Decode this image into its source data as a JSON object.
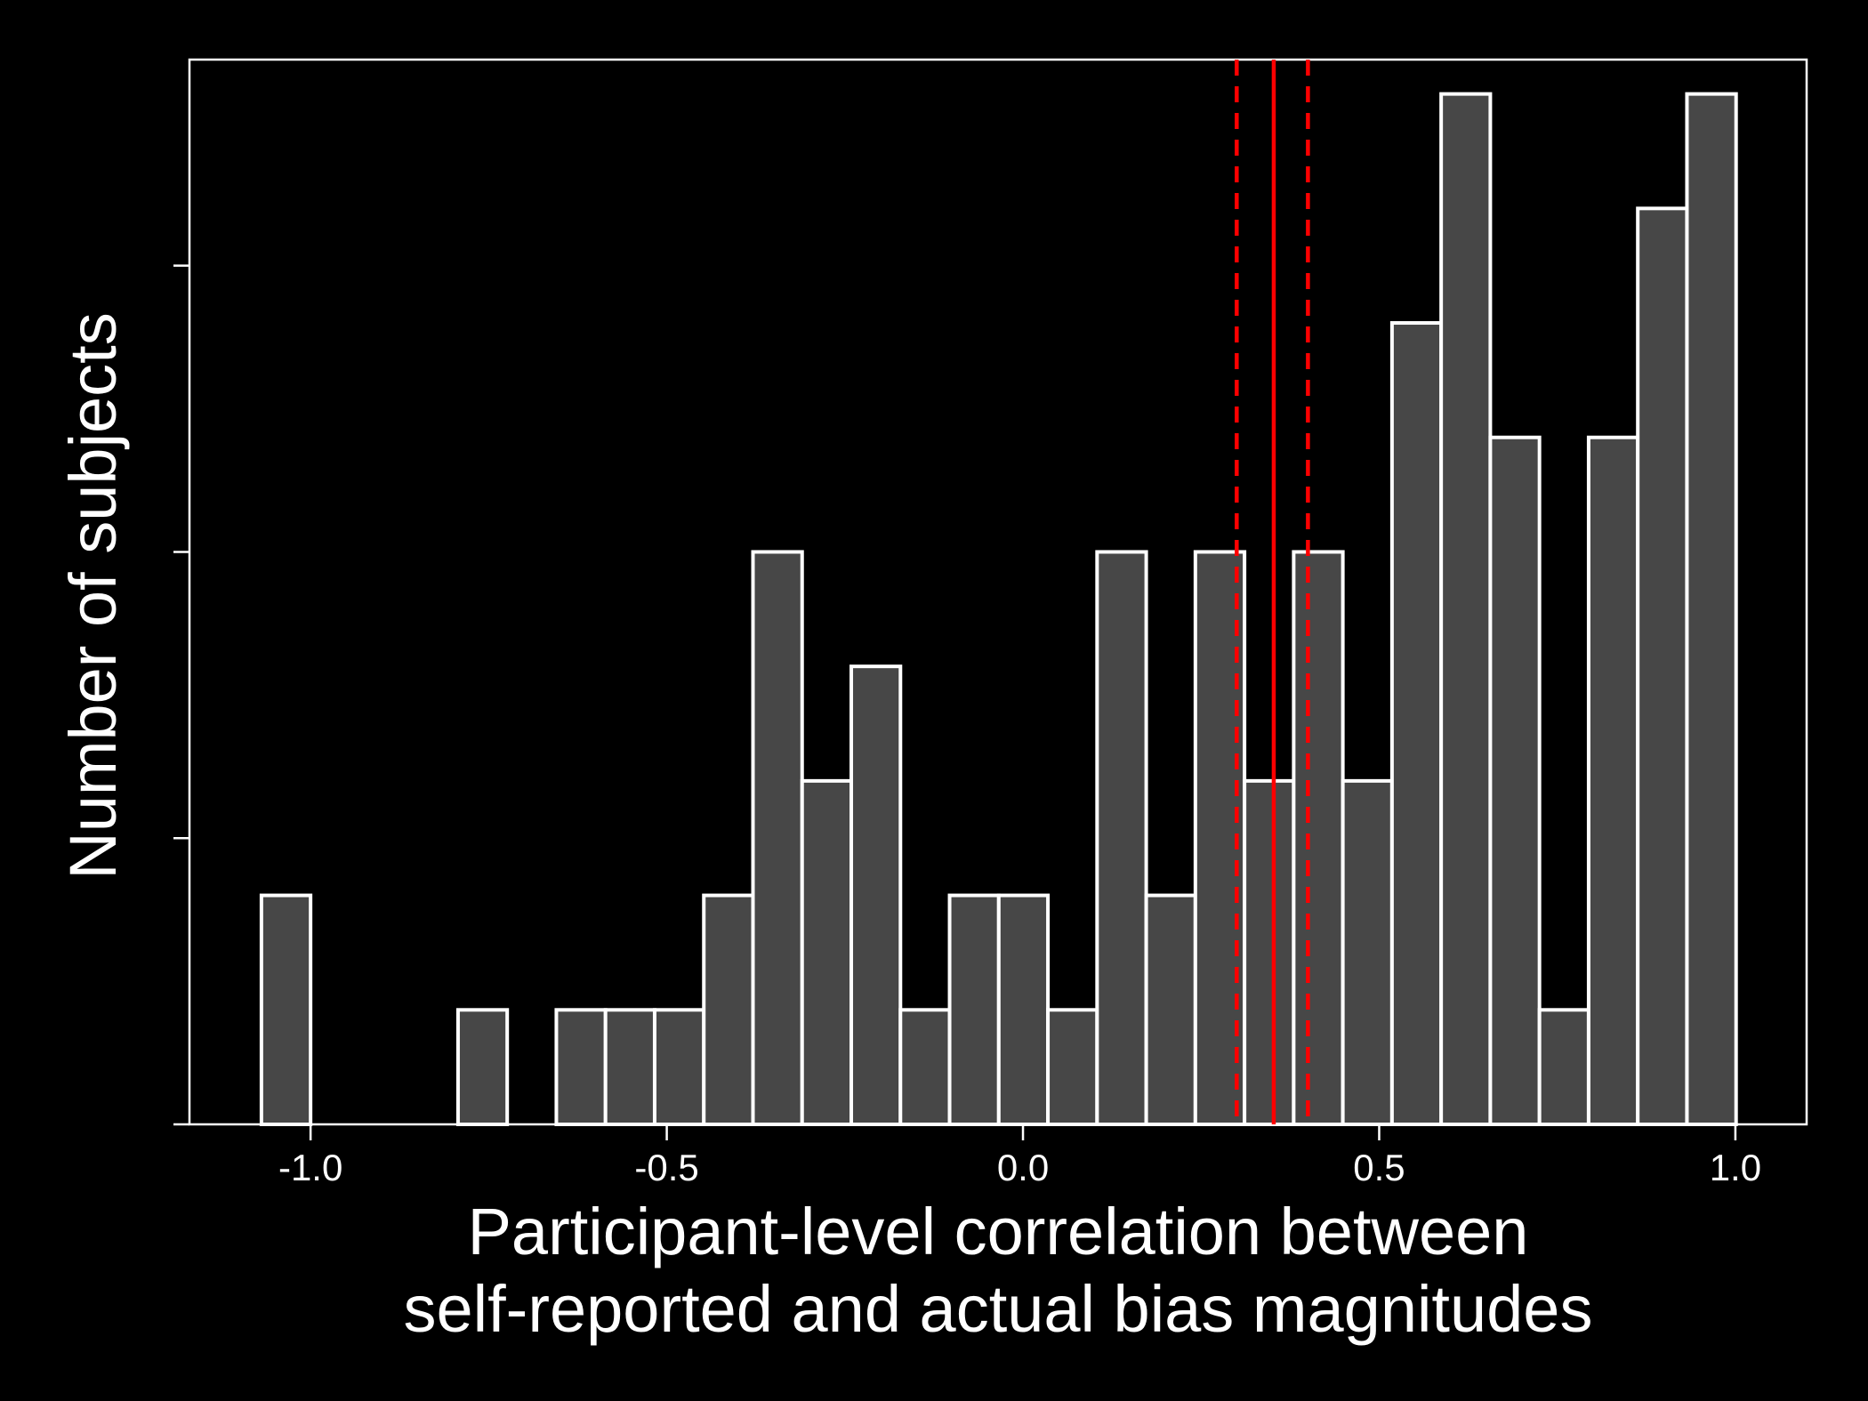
{
  "chart_data": {
    "type": "bar",
    "title": "",
    "xlabel_lines": [
      "Participant-level correlation between",
      "self-reported and actual bias magnitudes"
    ],
    "ylabel": "Number of subjects",
    "xlim": [
      -1.17,
      1.1
    ],
    "ylim": [
      0,
      9.3
    ],
    "x_ticks": [
      -1.0,
      -0.5,
      0.0,
      0.5,
      1.0
    ],
    "x_tick_labels": [
      "-1.0",
      "-0.5",
      "0.0",
      "0.5",
      "1.0"
    ],
    "y_ticks": [
      0,
      2.5,
      5,
      7.5
    ],
    "y_tick_labels_visible": false,
    "bin_width": 0.069,
    "bins": [
      {
        "left": -1.069,
        "count": 2
      },
      {
        "left": -1.0,
        "count": 0
      },
      {
        "left": -0.931,
        "count": 0
      },
      {
        "left": -0.862,
        "count": 0
      },
      {
        "left": -0.793,
        "count": 1
      },
      {
        "left": -0.724,
        "count": 0
      },
      {
        "left": -0.655,
        "count": 1
      },
      {
        "left": -0.586,
        "count": 1
      },
      {
        "left": -0.517,
        "count": 1
      },
      {
        "left": -0.448,
        "count": 2
      },
      {
        "left": -0.379,
        "count": 5
      },
      {
        "left": -0.31,
        "count": 3
      },
      {
        "left": -0.241,
        "count": 4
      },
      {
        "left": -0.172,
        "count": 1
      },
      {
        "left": -0.103,
        "count": 2
      },
      {
        "left": -0.034,
        "count": 2
      },
      {
        "left": 0.035,
        "count": 1
      },
      {
        "left": 0.104,
        "count": 5
      },
      {
        "left": 0.173,
        "count": 2
      },
      {
        "left": 0.242,
        "count": 5
      },
      {
        "left": 0.311,
        "count": 3
      },
      {
        "left": 0.38,
        "count": 5
      },
      {
        "left": 0.449,
        "count": 3
      },
      {
        "left": 0.518,
        "count": 7
      },
      {
        "left": 0.587,
        "count": 9
      },
      {
        "left": 0.656,
        "count": 6
      },
      {
        "left": 0.725,
        "count": 1
      },
      {
        "left": 0.794,
        "count": 6
      },
      {
        "left": 0.863,
        "count": 8
      },
      {
        "left": 0.932,
        "count": 9
      }
    ],
    "reference_lines": [
      {
        "x": 0.352,
        "style": "solid",
        "color": "#ff0000"
      },
      {
        "x": 0.3,
        "style": "dashed",
        "color": "#ff0000"
      },
      {
        "x": 0.4,
        "style": "dashed",
        "color": "#ff0000"
      }
    ],
    "grid": false,
    "colors": {
      "background": "#000000",
      "bar_fill": "#474747",
      "bar_edge": "#ffffff",
      "axis": "#ffffff",
      "text": "#ffffff"
    }
  }
}
